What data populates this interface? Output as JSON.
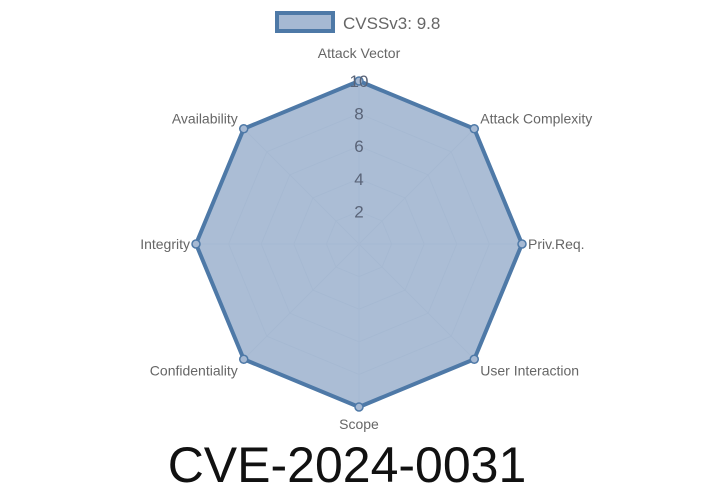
{
  "chart_data": {
    "type": "radar",
    "title": "CVE-2024-0031",
    "categories": [
      "Attack Vector",
      "Attack Complexity",
      "Priv.Req.",
      "User Interaction",
      "Scope",
      "Confidentiality",
      "Integrity",
      "Availability"
    ],
    "series": [
      {
        "name": "CVSSv3: 9.8",
        "values": [
          10,
          10,
          10,
          10,
          10,
          10,
          10,
          10
        ]
      }
    ],
    "rlim": [
      0,
      10
    ],
    "ticks": [
      "2",
      "4",
      "6",
      "8",
      "10"
    ],
    "tick_values": [
      2,
      4,
      6,
      8,
      10
    ],
    "legend": "top",
    "grid": true,
    "colors": {
      "fill": "#a6b9d3",
      "stroke": "#4e79a7",
      "grid": "#9aa8bb"
    }
  }
}
